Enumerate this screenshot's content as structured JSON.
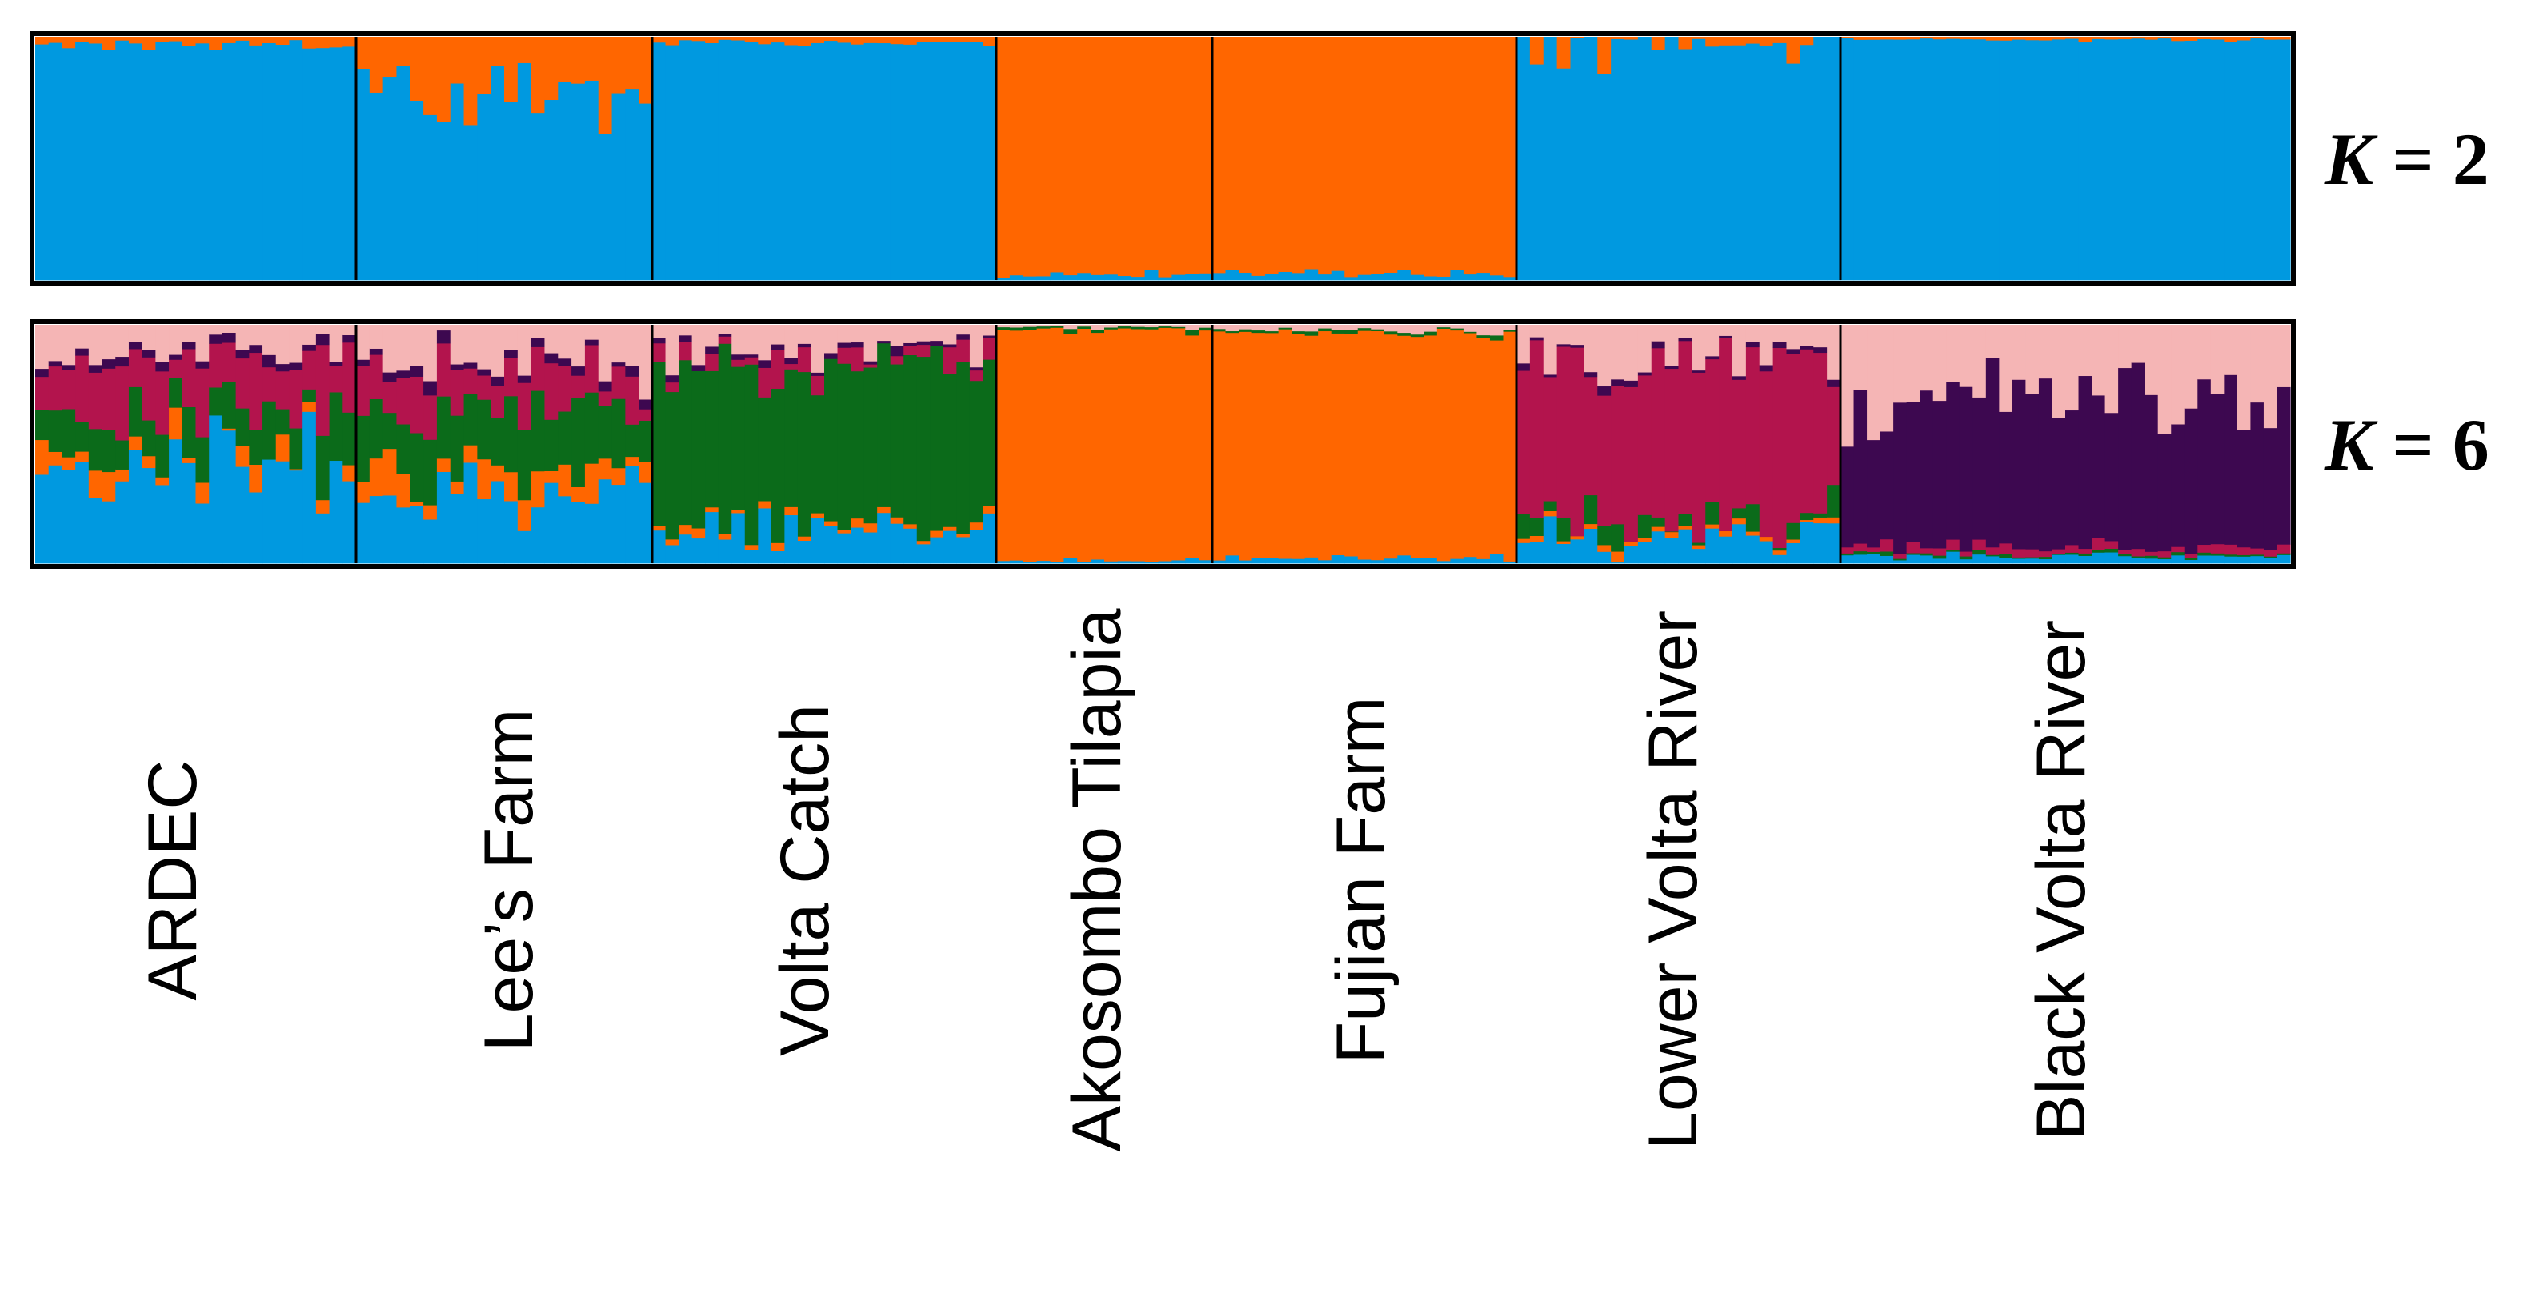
{
  "chart_data": {
    "type": "bar",
    "stacked": true,
    "normalized": true,
    "ylim": [
      0,
      1
    ],
    "populations": [
      {
        "name": "ARDEC",
        "n": 24
      },
      {
        "name": "Lee’s Farm",
        "n": 22
      },
      {
        "name": "Volta Catch",
        "n": 26
      },
      {
        "name": "Akosombo Tilapia",
        "n": 16
      },
      {
        "name": "Fujian Farm",
        "n": 23
      },
      {
        "name": "Lower Volta River",
        "n": 24
      },
      {
        "name": "Black Volta River",
        "n": 34
      }
    ],
    "panels": [
      {
        "label_var": "K",
        "label_rest": " = 2",
        "k": 2,
        "cluster_colors": [
          "#0099e0",
          "#ff6600"
        ],
        "population_mean_membership": [
          [
            0.97,
            0.03
          ],
          [
            0.78,
            0.22
          ],
          [
            0.98,
            0.02
          ],
          [
            0.02,
            0.98
          ],
          [
            0.03,
            0.97
          ],
          [
            0.95,
            0.05
          ],
          [
            0.99,
            0.01
          ]
        ]
      },
      {
        "label_var": "K",
        "label_rest": " = 6",
        "k": 6,
        "cluster_colors": [
          "#0099e0",
          "#ff6600",
          "#0b6b1a",
          "#b3144d",
          "#3d0850",
          "#f5b5b5"
        ],
        "population_mean_membership": [
          [
            0.4,
            0.05,
            0.18,
            0.22,
            0.03,
            0.12
          ],
          [
            0.3,
            0.12,
            0.25,
            0.15,
            0.03,
            0.15
          ],
          [
            0.15,
            0.03,
            0.65,
            0.05,
            0.02,
            0.1
          ],
          [
            0.01,
            0.97,
            0.01,
            0.0,
            0.0,
            0.01
          ],
          [
            0.02,
            0.95,
            0.01,
            0.0,
            0.0,
            0.02
          ],
          [
            0.12,
            0.02,
            0.05,
            0.65,
            0.02,
            0.14
          ],
          [
            0.03,
            0.0,
            0.01,
            0.03,
            0.6,
            0.33
          ]
        ]
      }
    ]
  }
}
